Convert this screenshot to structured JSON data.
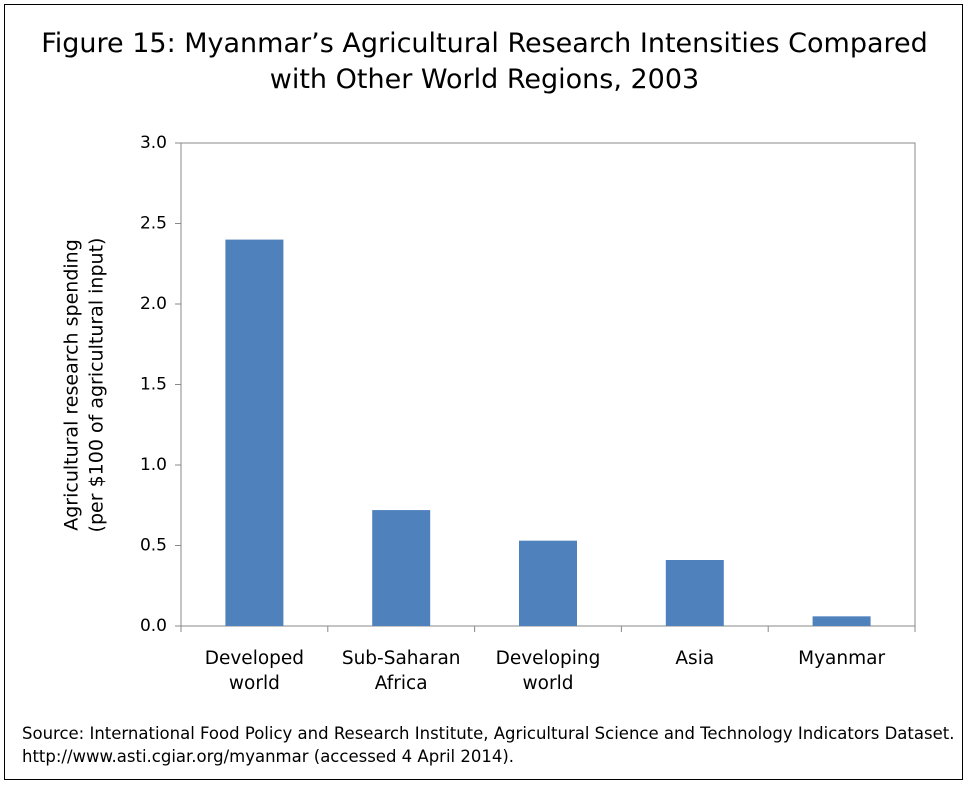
{
  "chart_data": {
    "type": "bar",
    "title": "Figure 15: Myanmar’s Agricultural Research Intensities Compared with Other World Regions, 2003",
    "y_label": [
      "Agricultural research spending",
      "(per $100 of agricultural input)"
    ],
    "categories": [
      "Developed world",
      "Sub-Saharan Africa",
      "Developing world",
      "Asia",
      "Myanmar"
    ],
    "values": [
      2.4,
      0.72,
      0.53,
      0.41,
      0.06
    ],
    "color": "#4f81bd",
    "ylim": [
      0,
      3
    ],
    "yticks": [
      {
        "value": 0,
        "label": "0.0"
      },
      0.5,
      {
        "value": 1,
        "label": "1.0"
      },
      1.5,
      {
        "value": 2,
        "label": "2.0"
      },
      2.5,
      {
        "value": 3,
        "label": "3.0"
      }
    ],
    "grid": false,
    "source": "Source: International Food Policy and Research Institute, Agricultural Science and Technology Indicators Dataset. http://www.asti.cgiar.org/myanmar (accessed 4 April 2014)."
  }
}
